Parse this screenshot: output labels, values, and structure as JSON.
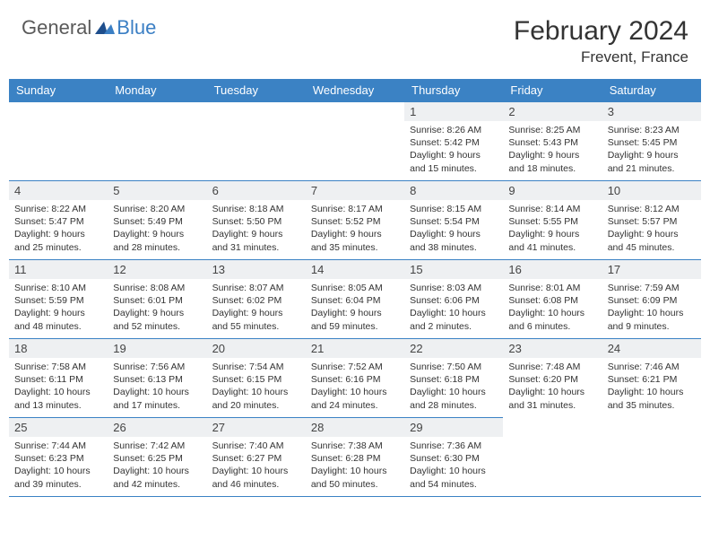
{
  "colors": {
    "header_bg": "#3b82c4",
    "header_text": "#ffffff",
    "daynum_bg": "#eef0f2",
    "border": "#3b82c4",
    "body_text": "#333333",
    "logo_gray": "#5a5a5a",
    "logo_blue": "#3b7fc4"
  },
  "logo": {
    "part1": "General",
    "part2": "Blue"
  },
  "title": "February 2024",
  "location": "Frevent, France",
  "day_headers": [
    "Sunday",
    "Monday",
    "Tuesday",
    "Wednesday",
    "Thursday",
    "Friday",
    "Saturday"
  ],
  "weeks": [
    [
      null,
      null,
      null,
      null,
      {
        "n": "1",
        "sunrise": "8:26 AM",
        "sunset": "5:42 PM",
        "daylight": "9 hours and 15 minutes."
      },
      {
        "n": "2",
        "sunrise": "8:25 AM",
        "sunset": "5:43 PM",
        "daylight": "9 hours and 18 minutes."
      },
      {
        "n": "3",
        "sunrise": "8:23 AM",
        "sunset": "5:45 PM",
        "daylight": "9 hours and 21 minutes."
      }
    ],
    [
      {
        "n": "4",
        "sunrise": "8:22 AM",
        "sunset": "5:47 PM",
        "daylight": "9 hours and 25 minutes."
      },
      {
        "n": "5",
        "sunrise": "8:20 AM",
        "sunset": "5:49 PM",
        "daylight": "9 hours and 28 minutes."
      },
      {
        "n": "6",
        "sunrise": "8:18 AM",
        "sunset": "5:50 PM",
        "daylight": "9 hours and 31 minutes."
      },
      {
        "n": "7",
        "sunrise": "8:17 AM",
        "sunset": "5:52 PM",
        "daylight": "9 hours and 35 minutes."
      },
      {
        "n": "8",
        "sunrise": "8:15 AM",
        "sunset": "5:54 PM",
        "daylight": "9 hours and 38 minutes."
      },
      {
        "n": "9",
        "sunrise": "8:14 AM",
        "sunset": "5:55 PM",
        "daylight": "9 hours and 41 minutes."
      },
      {
        "n": "10",
        "sunrise": "8:12 AM",
        "sunset": "5:57 PM",
        "daylight": "9 hours and 45 minutes."
      }
    ],
    [
      {
        "n": "11",
        "sunrise": "8:10 AM",
        "sunset": "5:59 PM",
        "daylight": "9 hours and 48 minutes."
      },
      {
        "n": "12",
        "sunrise": "8:08 AM",
        "sunset": "6:01 PM",
        "daylight": "9 hours and 52 minutes."
      },
      {
        "n": "13",
        "sunrise": "8:07 AM",
        "sunset": "6:02 PM",
        "daylight": "9 hours and 55 minutes."
      },
      {
        "n": "14",
        "sunrise": "8:05 AM",
        "sunset": "6:04 PM",
        "daylight": "9 hours and 59 minutes."
      },
      {
        "n": "15",
        "sunrise": "8:03 AM",
        "sunset": "6:06 PM",
        "daylight": "10 hours and 2 minutes."
      },
      {
        "n": "16",
        "sunrise": "8:01 AM",
        "sunset": "6:08 PM",
        "daylight": "10 hours and 6 minutes."
      },
      {
        "n": "17",
        "sunrise": "7:59 AM",
        "sunset": "6:09 PM",
        "daylight": "10 hours and 9 minutes."
      }
    ],
    [
      {
        "n": "18",
        "sunrise": "7:58 AM",
        "sunset": "6:11 PM",
        "daylight": "10 hours and 13 minutes."
      },
      {
        "n": "19",
        "sunrise": "7:56 AM",
        "sunset": "6:13 PM",
        "daylight": "10 hours and 17 minutes."
      },
      {
        "n": "20",
        "sunrise": "7:54 AM",
        "sunset": "6:15 PM",
        "daylight": "10 hours and 20 minutes."
      },
      {
        "n": "21",
        "sunrise": "7:52 AM",
        "sunset": "6:16 PM",
        "daylight": "10 hours and 24 minutes."
      },
      {
        "n": "22",
        "sunrise": "7:50 AM",
        "sunset": "6:18 PM",
        "daylight": "10 hours and 28 minutes."
      },
      {
        "n": "23",
        "sunrise": "7:48 AM",
        "sunset": "6:20 PM",
        "daylight": "10 hours and 31 minutes."
      },
      {
        "n": "24",
        "sunrise": "7:46 AM",
        "sunset": "6:21 PM",
        "daylight": "10 hours and 35 minutes."
      }
    ],
    [
      {
        "n": "25",
        "sunrise": "7:44 AM",
        "sunset": "6:23 PM",
        "daylight": "10 hours and 39 minutes."
      },
      {
        "n": "26",
        "sunrise": "7:42 AM",
        "sunset": "6:25 PM",
        "daylight": "10 hours and 42 minutes."
      },
      {
        "n": "27",
        "sunrise": "7:40 AM",
        "sunset": "6:27 PM",
        "daylight": "10 hours and 46 minutes."
      },
      {
        "n": "28",
        "sunrise": "7:38 AM",
        "sunset": "6:28 PM",
        "daylight": "10 hours and 50 minutes."
      },
      {
        "n": "29",
        "sunrise": "7:36 AM",
        "sunset": "6:30 PM",
        "daylight": "10 hours and 54 minutes."
      },
      null,
      null
    ]
  ],
  "labels": {
    "sunrise": "Sunrise:",
    "sunset": "Sunset:",
    "daylight": "Daylight:"
  }
}
